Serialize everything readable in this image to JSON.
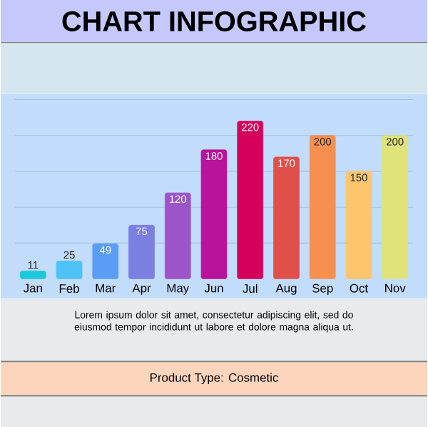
{
  "chart_data": {
    "type": "bar",
    "title": "CHART INFOGRAPHIC",
    "categories": [
      "Jan",
      "Feb",
      "Mar",
      "Apr",
      "May",
      "Jun",
      "Jul",
      "Aug",
      "Sep",
      "Oct",
      "Nov"
    ],
    "values": [
      11,
      25,
      49,
      75,
      120,
      180,
      220,
      170,
      200,
      150,
      200
    ],
    "colors": [
      "#1ec8dc",
      "#4fc3f7",
      "#5b9cf5",
      "#7b7fe0",
      "#9b55c8",
      "#b8139a",
      "#d4005a",
      "#e0504a",
      "#f78f4e",
      "#ffc56e",
      "#e0e27a"
    ],
    "ylim": [
      0,
      250
    ],
    "yticks": [
      {
        "value": 50,
        "label": null
      },
      {
        "value": 100,
        "label": null
      },
      {
        "value": 150,
        "label": null
      },
      {
        "value": 200,
        "label": null
      },
      {
        "value": 250,
        "label": null
      }
    ],
    "grid": "y",
    "tick_labels": "x",
    "data_labels": true,
    "annotations": [
      "Lorem ipsum dolor sit amet, consectetur adipiscing elit, sed do eiusmod tempor incididunt ut labore et dolore magna aliqua ut.",
      "Product Type: Cosmetic"
    ]
  }
}
